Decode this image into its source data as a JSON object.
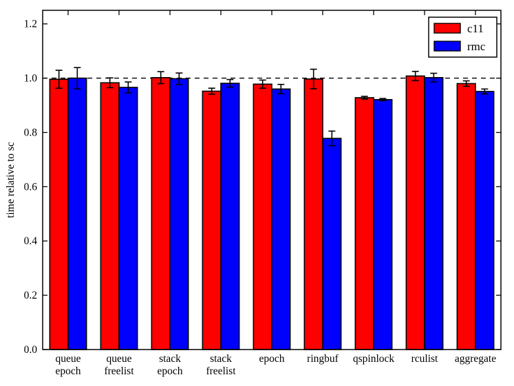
{
  "figure": {
    "background": "#ffffff",
    "axis_color": "#000000"
  },
  "chart_data": {
    "type": "bar",
    "title": "",
    "xlabel": "",
    "ylabel": "time relative to sc",
    "ylim": [
      0,
      1.25
    ],
    "yticks": [
      0.0,
      0.2,
      0.4,
      0.6,
      0.8,
      1.0,
      1.2
    ],
    "ytick_labels": [
      "0.0",
      "0.2",
      "0.4",
      "0.6",
      "0.8",
      "1.0",
      "1.2"
    ],
    "grid": false,
    "reference_line": {
      "y": 1.0,
      "style": "dashed",
      "color": "#000000"
    },
    "categories": [
      "queue epoch",
      "queue freelist",
      "stack epoch",
      "stack freelist",
      "epoch",
      "ringbuf",
      "qspinlock",
      "rculist",
      "aggregate"
    ],
    "category_label_lines": [
      [
        "queue",
        "epoch"
      ],
      [
        "queue",
        "freelist"
      ],
      [
        "stack",
        "epoch"
      ],
      [
        "stack",
        "freelist"
      ],
      [
        "epoch"
      ],
      [
        "ringbuf"
      ],
      [
        "qspinlock"
      ],
      [
        "rculist"
      ],
      [
        "aggregate"
      ]
    ],
    "series": [
      {
        "name": "c11",
        "color": "#ff0000",
        "values": [
          0.996,
          0.983,
          1.002,
          0.952,
          0.978,
          0.997,
          0.928,
          1.008,
          0.98
        ],
        "errors": [
          0.033,
          0.018,
          0.022,
          0.011,
          0.015,
          0.036,
          0.005,
          0.017,
          0.01
        ]
      },
      {
        "name": "rmc",
        "color": "#0000ff",
        "values": [
          1.0,
          0.966,
          0.998,
          0.981,
          0.96,
          0.778,
          0.921,
          1.002,
          0.951
        ],
        "errors": [
          0.039,
          0.02,
          0.021,
          0.014,
          0.017,
          0.027,
          0.004,
          0.016,
          0.009
        ]
      }
    ],
    "legend": {
      "position": "upper right",
      "entries": [
        {
          "label": "c11",
          "color": "#ff0000"
        },
        {
          "label": "rmc",
          "color": "#0000ff"
        }
      ]
    }
  }
}
